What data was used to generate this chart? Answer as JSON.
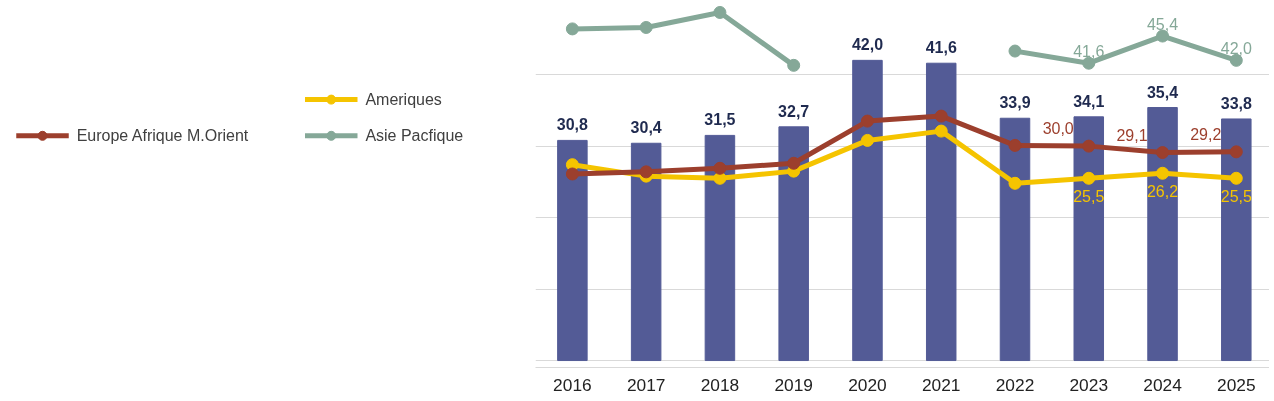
{
  "chart_data": {
    "type": "bar",
    "categories": [
      "2016",
      "2017",
      "2018",
      "2019",
      "2020",
      "2021",
      "2022",
      "2023",
      "2024",
      "2025"
    ],
    "tick_labels": "x",
    "grid": "y",
    "legend": "left",
    "series": [
      {
        "color": "#535b96",
        "values": [
          30.8,
          30.4,
          31.5,
          32.7,
          42.0,
          41.6,
          33.9,
          34.1,
          35.4,
          33.8
        ],
        "value_labels": [
          "30,8",
          "30,4",
          "31,5",
          "32,7",
          "42,0",
          "41,6",
          "33,9",
          "34,1",
          "35,4",
          "33,8"
        ]
      },
      {
        "type": "line",
        "name": "Ameriques",
        "color": "#f5c400",
        "marker": "circle",
        "values": [
          27.4,
          25.8,
          25.5,
          26.5,
          30.8,
          32.1,
          24.8,
          25.5,
          26.2,
          25.5
        ],
        "value_labels": [
          null,
          null,
          null,
          null,
          null,
          null,
          null,
          "25,5",
          "26,2",
          "25,5"
        ]
      },
      {
        "type": "line",
        "name": "Europe Afrique M.Orient",
        "color": "#9c3f2d",
        "marker": "circle",
        "values": [
          26.1,
          26.4,
          26.9,
          27.6,
          33.5,
          34.2,
          30.1,
          30.0,
          29.1,
          29.2
        ],
        "value_labels": [
          null,
          null,
          null,
          null,
          null,
          null,
          null,
          "30,0",
          "29,1",
          "29,2"
        ]
      },
      {
        "type": "line",
        "name": "Asie Pacfique",
        "color": "#85a898",
        "marker": "circle",
        "values": [
          46.4,
          46.6,
          48.7,
          41.3,
          null,
          null,
          43.3,
          41.6,
          45.4,
          42.0
        ],
        "value_labels": [
          null,
          null,
          null,
          null,
          null,
          null,
          null,
          "41,6",
          "45,4",
          "42,0"
        ]
      }
    ]
  }
}
